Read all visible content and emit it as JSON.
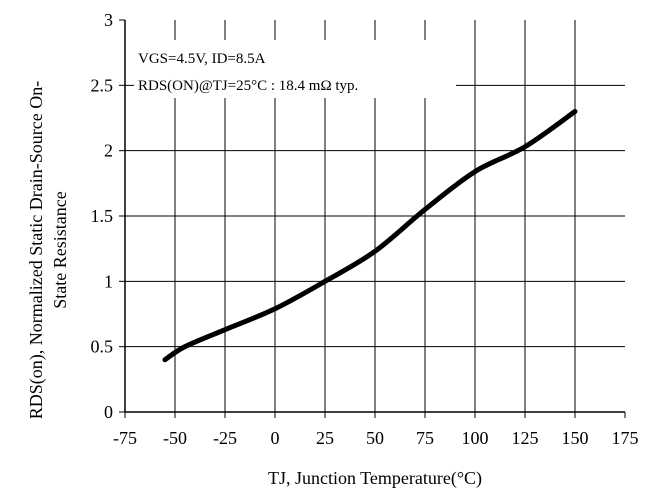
{
  "chart_data": {
    "type": "line",
    "title": "",
    "xlabel": "TJ, Junction Temperature(°C)",
    "ylabel_line1": "RDS(on), Normalized Static Drain-Source On-",
    "ylabel_line2": "State Resistance",
    "xlim": [
      -75,
      175
    ],
    "ylim": [
      0,
      3
    ],
    "x_ticks": [
      -75,
      -50,
      -25,
      0,
      25,
      50,
      75,
      100,
      125,
      150,
      175
    ],
    "x_tick_labels": [
      "-75",
      "-50",
      "-25",
      "0",
      "25",
      "50",
      "75",
      "100",
      "125",
      "150",
      "175"
    ],
    "y_ticks": [
      0,
      0.5,
      1,
      1.5,
      2,
      2.5,
      3
    ],
    "y_tick_labels": [
      "0",
      "0.5",
      "1",
      "1.5",
      "2",
      "2.5",
      "3"
    ],
    "grid": true,
    "annotation_line1": "VGS=4.5V, ID=8.5A",
    "annotation_line2": "RDS(ON)@TJ=25°C : 18.4 mΩ typ.",
    "series": [
      {
        "color": "#000000",
        "x": [
          -55,
          -45,
          -25,
          0,
          25,
          50,
          75,
          100,
          125,
          150
        ],
        "y": [
          0.4,
          0.5,
          0.63,
          0.79,
          1.0,
          1.23,
          1.55,
          1.84,
          2.03,
          2.3
        ]
      }
    ]
  }
}
